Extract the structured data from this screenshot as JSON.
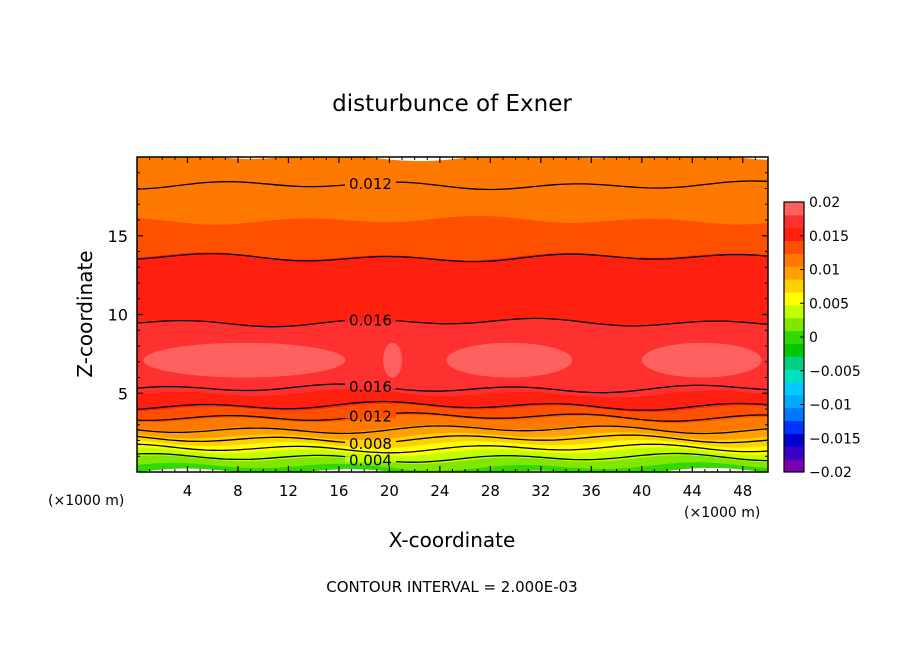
{
  "chart_data": {
    "type": "heatmap",
    "title": "disturbunce of Exner",
    "xlabel": "X-coordinate",
    "ylabel": "Z-coordinate",
    "x_unit_left": "(×1000 m)",
    "x_unit_right": "(×1000 m)",
    "footer": "CONTOUR INTERVAL = 2.000E-03",
    "xlim": [
      0,
      50
    ],
    "ylim": [
      0,
      20
    ],
    "x_ticks": [
      4,
      8,
      12,
      16,
      20,
      24,
      28,
      32,
      36,
      40,
      44,
      48
    ],
    "y_ticks": [
      5,
      10,
      15
    ],
    "x_tick_labels": [
      "4",
      "8",
      "12",
      "16",
      "20",
      "24",
      "28",
      "32",
      "36",
      "40",
      "44",
      "48"
    ],
    "y_tick_labels": [
      "5",
      "10",
      "15"
    ],
    "colorbar": {
      "range": [
        -0.02,
        0.02
      ],
      "tick_values": [
        0.02,
        0.015,
        0.01,
        0.005,
        0,
        -0.005,
        -0.01,
        -0.015,
        -0.02
      ],
      "tick_labels": [
        "0.02",
        "0.015",
        "0.01",
        "0.005",
        "0",
        "−0.005",
        "−0.01",
        "−0.015",
        "−0.02"
      ],
      "colors": [
        "#7a00b0",
        "#3b00c8",
        "#0000d0",
        "#0033ff",
        "#0077ff",
        "#00aaff",
        "#00ccff",
        "#00e0c0",
        "#00d080",
        "#00c800",
        "#33d800",
        "#80e800",
        "#c0ff00",
        "#ffff00",
        "#ffd000",
        "#ffa000",
        "#ff7800",
        "#ff5000",
        "#ff2010",
        "#ff3030",
        "#ff6060"
      ]
    },
    "bands": [
      {
        "z0": 0.0,
        "z1": 0.35,
        "color": "#33d800"
      },
      {
        "z0": 0.35,
        "z1": 0.8,
        "color": "#80e800"
      },
      {
        "z0": 0.8,
        "z1": 1.3,
        "color": "#c0ff00"
      },
      {
        "z0": 1.3,
        "z1": 1.8,
        "color": "#ffff00"
      },
      {
        "z0": 1.8,
        "z1": 2.3,
        "color": "#ffd000"
      },
      {
        "z0": 2.3,
        "z1": 2.8,
        "color": "#ffa000"
      },
      {
        "z0": 2.8,
        "z1": 3.4,
        "color": "#ff7800"
      },
      {
        "z0": 3.4,
        "z1": 4.1,
        "color": "#ff5000"
      },
      {
        "z0": 4.1,
        "z1": 5.0,
        "color": "#ff2010"
      },
      {
        "z0": 5.0,
        "z1": 9.5,
        "color": "#ff3030"
      },
      {
        "z0": 9.5,
        "z1": 13.7,
        "color": "#ff2010"
      },
      {
        "z0": 13.7,
        "z1": 16.0,
        "color": "#ff5000"
      },
      {
        "z0": 16.0,
        "z1": 20.0,
        "color": "#ff7800"
      }
    ],
    "max_region": {
      "z0": 6.0,
      "z1": 8.2,
      "color": "#ff6060"
    },
    "contours": [
      {
        "value": 0.004,
        "z": 0.9,
        "label": "0.004"
      },
      {
        "value": 0.006,
        "z": 1.5,
        "label": ""
      },
      {
        "value": 0.008,
        "z": 2.1,
        "label": "0.008"
      },
      {
        "value": 0.01,
        "z": 2.7,
        "label": ""
      },
      {
        "value": 0.012,
        "z": 3.5,
        "label": "0.012"
      },
      {
        "value": 0.014,
        "z": 4.2,
        "label": ""
      },
      {
        "value": 0.016,
        "z": 5.3,
        "label": "0.016"
      },
      {
        "value": 0.016,
        "z": 9.5,
        "label": "0.016"
      },
      {
        "value": 0.014,
        "z": 13.6,
        "label": ""
      },
      {
        "value": 0.012,
        "z": 18.2,
        "label": "0.012"
      }
    ]
  }
}
